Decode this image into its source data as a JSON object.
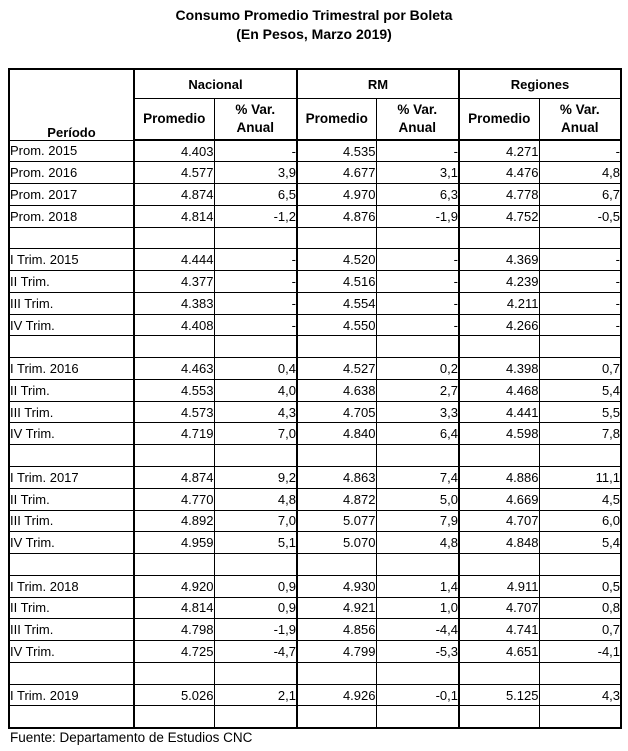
{
  "chart_data": {
    "type": "table",
    "title": "Consumo Promedio Trimestral por Boleta",
    "subtitle": "(En Pesos, Marzo 2019)",
    "source": "Fuente: Departamento de Estudios CNC",
    "period_header": "Período",
    "column_groups": [
      "Nacional",
      "RM",
      "Regiones"
    ],
    "promedio_header": "Promedio",
    "var_header_line1": "% Var.",
    "var_header_line2": "Anual",
    "columns": [
      "Período",
      "Nacional Promedio",
      "Nacional % Var. Anual",
      "RM Promedio",
      "RM % Var. Anual",
      "Regiones Promedio",
      "Regiones % Var. Anual"
    ],
    "rows": [
      {
        "period": "Prom. 2015",
        "values": [
          "4.403",
          "-",
          "4.535",
          "-",
          "4.271",
          "-"
        ]
      },
      {
        "period": "Prom. 2016",
        "values": [
          "4.577",
          "3,9",
          "4.677",
          "3,1",
          "4.476",
          "4,8"
        ]
      },
      {
        "period": "Prom. 2017",
        "values": [
          "4.874",
          "6,5",
          "4.970",
          "6,3",
          "4.778",
          "6,7"
        ]
      },
      {
        "period": "Prom. 2018",
        "values": [
          "4.814",
          "-1,2",
          "4.876",
          "-1,9",
          "4.752",
          "-0,5"
        ]
      },
      {
        "period": "",
        "values": [
          "",
          "",
          "",
          "",
          "",
          ""
        ]
      },
      {
        "period": "I Trim. 2015",
        "values": [
          "4.444",
          "-",
          "4.520",
          "-",
          "4.369",
          "-"
        ]
      },
      {
        "period": "II Trim.",
        "values": [
          "4.377",
          "-",
          "4.516",
          "-",
          "4.239",
          "-"
        ]
      },
      {
        "period": "III Trim.",
        "values": [
          "4.383",
          "-",
          "4.554",
          "-",
          "4.211",
          "-"
        ]
      },
      {
        "period": "IV Trim.",
        "values": [
          "4.408",
          "-",
          "4.550",
          "-",
          "4.266",
          "-"
        ]
      },
      {
        "period": "",
        "values": [
          "",
          "",
          "",
          "",
          "",
          ""
        ]
      },
      {
        "period": "I Trim. 2016",
        "values": [
          "4.463",
          "0,4",
          "4.527",
          "0,2",
          "4.398",
          "0,7"
        ]
      },
      {
        "period": "II Trim.",
        "values": [
          "4.553",
          "4,0",
          "4.638",
          "2,7",
          "4.468",
          "5,4"
        ]
      },
      {
        "period": "III Trim.",
        "values": [
          "4.573",
          "4,3",
          "4.705",
          "3,3",
          "4.441",
          "5,5"
        ]
      },
      {
        "period": "IV Trim.",
        "values": [
          "4.719",
          "7,0",
          "4.840",
          "6,4",
          "4.598",
          "7,8"
        ]
      },
      {
        "period": "",
        "values": [
          "",
          "",
          "",
          "",
          "",
          ""
        ]
      },
      {
        "period": "I Trim. 2017",
        "values": [
          "4.874",
          "9,2",
          "4.863",
          "7,4",
          "4.886",
          "11,1"
        ]
      },
      {
        "period": "II Trim.",
        "values": [
          "4.770",
          "4,8",
          "4.872",
          "5,0",
          "4.669",
          "4,5"
        ]
      },
      {
        "period": "III Trim.",
        "values": [
          "4.892",
          "7,0",
          "5.077",
          "7,9",
          "4.707",
          "6,0"
        ]
      },
      {
        "period": "IV Trim.",
        "values": [
          "4.959",
          "5,1",
          "5.070",
          "4,8",
          "4.848",
          "5,4"
        ]
      },
      {
        "period": "",
        "values": [
          "",
          "",
          "",
          "",
          "",
          ""
        ]
      },
      {
        "period": "I Trim. 2018",
        "values": [
          "4.920",
          "0,9",
          "4.930",
          "1,4",
          "4.911",
          "0,5"
        ]
      },
      {
        "period": "II Trim.",
        "values": [
          "4.814",
          "0,9",
          "4.921",
          "1,0",
          "4.707",
          "0,8"
        ]
      },
      {
        "period": "III Trim.",
        "values": [
          "4.798",
          "-1,9",
          "4.856",
          "-4,4",
          "4.741",
          "0,7"
        ]
      },
      {
        "period": "IV Trim.",
        "values": [
          "4.725",
          "-4,7",
          "4.799",
          "-5,3",
          "4.651",
          "-4,1"
        ]
      },
      {
        "period": "",
        "values": [
          "",
          "",
          "",
          "",
          "",
          ""
        ]
      },
      {
        "period": "I Trim. 2019",
        "values": [
          "5.026",
          "2,1",
          "4.926",
          "-0,1",
          "5.125",
          "4,3"
        ]
      },
      {
        "period": "",
        "values": [
          "",
          "",
          "",
          "",
          "",
          ""
        ]
      }
    ]
  }
}
